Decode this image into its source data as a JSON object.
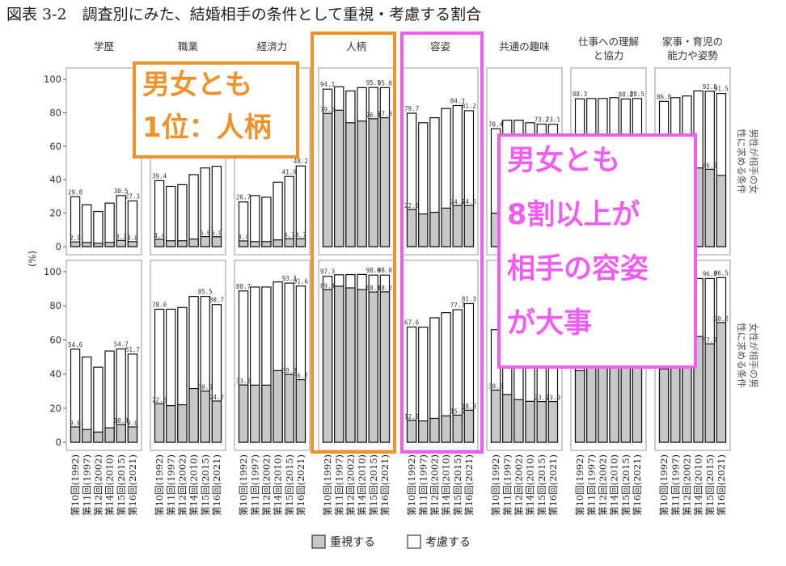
{
  "figure": {
    "title": "図表 3-2　調査別にみた、結婚相手の条件として重視・考慮する割合",
    "y_axis_unit": "(%)",
    "row_labels": [
      "男性が相手の女性に求める条件",
      "女性が相手の男性に求める条件"
    ],
    "legend": [
      "重視する",
      "考慮する"
    ],
    "callouts": [
      {
        "lines": [
          "男女とも",
          "1位：人柄"
        ],
        "color": "#f0922b"
      },
      {
        "lines": [
          "男女とも",
          "8割以上が",
          "相手の容姿",
          "が大事"
        ],
        "color": "#ef5ef0"
      }
    ]
  },
  "chart_data": {
    "type": "bar",
    "stacked_overlay": true,
    "yticks": [
      0,
      20,
      40,
      60,
      80,
      100
    ],
    "ylim": [
      0,
      100
    ],
    "categories": [
      "第10回(1992)",
      "第11回(1997)",
      "第12回(2002)",
      "第14回(2010)",
      "第15回(2015)",
      "第16回(2021)"
    ],
    "facets": [
      "学歴",
      "職業",
      "経済力",
      "人柄",
      "容姿",
      "共通の趣味",
      "仕事への理解と協力",
      "家事・育児の能力や姿勢"
    ],
    "series": [
      {
        "name": "重視する",
        "fill": "#c8c8c8"
      },
      {
        "name": "考慮する",
        "fill": "#ffffff"
      }
    ],
    "rows": [
      {
        "label": "男性が相手の女性に求める条件",
        "panels": [
          {
            "facet": "学歴",
            "total": [
              29.8,
              25,
              21,
              26,
              30.5,
              27.3
            ],
            "emph": [
              2.8,
              2.5,
              2,
              2.5,
              3.7,
              3.0
            ],
            "labels_total": [
              "29.8",
              "",
              "",
              "",
              "30.5",
              "27.3"
            ],
            "labels_emph": [
              "2.8",
              "",
              "",
              "",
              "3.7",
              "3.0"
            ]
          },
          {
            "facet": "職業",
            "total": [
              39.4,
              36,
              37,
              43,
              47,
              48
            ],
            "emph": [
              4.4,
              3.5,
              3.5,
              4.5,
              6.0,
              5.9
            ],
            "labels_total": [
              "39.4",
              "",
              "",
              "",
              "",
              ""
            ],
            "labels_emph": [
              "4.4",
              "",
              "",
              "",
              "6.0",
              "5.9"
            ]
          },
          {
            "facet": "経済力",
            "total": [
              26.7,
              30.5,
              29.5,
              38.5,
              41.9,
              48.2
            ],
            "emph": [
              3.4,
              3,
              3,
              4,
              4.7,
              4.7
            ],
            "labels_total": [
              "26.7",
              "",
              "",
              "",
              "41.9",
              "48.2"
            ],
            "labels_emph": [
              "3.4",
              "",
              "",
              "",
              "4.7",
              "4.7"
            ]
          },
          {
            "facet": "人柄",
            "total": [
              94.1,
              95.5,
              93,
              95,
              95.1,
              95.0
            ],
            "emph": [
              79.6,
              81.5,
              74,
              75,
              76.4,
              77.0
            ],
            "labels_total": [
              "94.1",
              "",
              "",
              "",
              "95.1",
              "95.0"
            ],
            "labels_emph": [
              "79.6",
              "",
              "",
              "",
              "76.4",
              "77.0"
            ]
          },
          {
            "facet": "容姿",
            "total": [
              79.7,
              74,
              77,
              82.5,
              84.3,
              81.2
            ],
            "emph": [
              22.2,
              19.5,
              20.5,
              23,
              24.5,
              24.6
            ],
            "labels_total": [
              "79.7",
              "",
              "",
              "",
              "84.3",
              "81.2"
            ],
            "labels_emph": [
              "22.2",
              "",
              "",
              "",
              "24.5",
              "24.6"
            ]
          },
          {
            "facet": "共通の趣味",
            "total": [
              70.4,
              75.5,
              75.5,
              74,
              73.2,
              73.1
            ],
            "emph": [
              20,
              22,
              22,
              21,
              20,
              20
            ],
            "labels_total": [
              "70.4",
              "",
              "",
              "",
              "73.2",
              "73.1"
            ],
            "labels_emph": [
              "",
              "",
              "",
              "",
              "",
              ""
            ]
          },
          {
            "facet": "仕事への理解と協力",
            "total": [
              88.3,
              88.5,
              88.5,
              89,
              88.2,
              88.5
            ],
            "emph": [
              35,
              37,
              38,
              40,
              41,
              42
            ],
            "labels_total": [
              "88.3",
              "",
              "",
              "",
              "88.2",
              "88.5"
            ],
            "labels_emph": [
              "",
              "",
              "",
              "",
              "",
              ""
            ]
          },
          {
            "facet": "家事・育児の能力や姿勢",
            "total": [
              86.8,
              89,
              90,
              93,
              92.8,
              91.5
            ],
            "emph": [
              30,
              34,
              38,
              47,
              46.2,
              42.5
            ],
            "labels_total": [
              "86.8",
              "",
              "",
              "",
              "92.8",
              "91.5"
            ],
            "labels_emph": [
              "",
              "",
              "",
              "",
              "46.2",
              ""
            ]
          }
        ]
      },
      {
        "label": "女性が相手の男性に求める条件",
        "panels": [
          {
            "facet": "学歴",
            "total": [
              54.6,
              50,
              44,
              53.5,
              54.7,
              51.7
            ],
            "emph": [
              9.0,
              7.5,
              6,
              8.5,
              10.4,
              9.0
            ],
            "labels_total": [
              "54.6",
              "",
              "",
              "",
              "54.7",
              "51.7"
            ],
            "labels_emph": [
              "9.0",
              "",
              "",
              "",
              "10.4",
              "9.0"
            ]
          },
          {
            "facet": "職業",
            "total": [
              78.0,
              78,
              79,
              85.5,
              85.5,
              80.7
            ],
            "emph": [
              22.6,
              21.5,
              22,
              31.5,
              30.0,
              24.2
            ],
            "labels_total": [
              "78.0",
              "",
              "",
              "",
              "85.5",
              "80.7"
            ],
            "labels_emph": [
              "22.6",
              "",
              "",
              "",
              "30.0",
              "24.2"
            ]
          },
          {
            "facet": "経済力",
            "total": [
              88.7,
              91,
              91,
              94,
              93.3,
              91.6
            ],
            "emph": [
              33.6,
              33.5,
              33.5,
              42,
              39.8,
              36.7
            ],
            "labels_total": [
              "88.7",
              "",
              "",
              "",
              "93.3",
              "91.6"
            ],
            "labels_emph": [
              "33.6",
              "",
              "",
              "",
              "39.8",
              "36.7"
            ]
          },
          {
            "facet": "人柄",
            "total": [
              97.3,
              98.2,
              98.3,
              98.4,
              98.0,
              98.0
            ],
            "emph": [
              89.4,
              91.5,
              90.5,
              89.5,
              88.1,
              88.2
            ],
            "labels_total": [
              "97.3",
              "",
              "",
              "",
              "98.0",
              "98.0"
            ],
            "labels_emph": [
              "89.4",
              "",
              "",
              "",
              "88.1",
              "88.2"
            ]
          },
          {
            "facet": "容姿",
            "total": [
              67.6,
              67.5,
              73,
              76,
              77.7,
              81.3
            ],
            "emph": [
              12.9,
              12.5,
              14,
              15.5,
              15.9,
              18.8
            ],
            "labels_total": [
              "67.6",
              "",
              "",
              "",
              "77.7",
              "81.3"
            ],
            "labels_emph": [
              "12.9",
              "",
              "",
              "",
              "15.9",
              "18.8"
            ]
          },
          {
            "facet": "共通の趣味",
            "total": [
              66,
              67,
              68,
              70,
              72,
              73
            ],
            "emph": [
              30.6,
              28,
              25,
              24,
              23.9,
              23.9
            ],
            "labels_total": [
              "",
              "",
              "",
              "",
              "",
              ""
            ],
            "labels_emph": [
              "30.6",
              "",
              "",
              "",
              "23.9",
              "23.9"
            ]
          },
          {
            "facet": "仕事への理解と協力",
            "total": [
              94,
              95,
              96,
              97,
              96.5,
              96
            ],
            "emph": [
              42,
              45,
              48,
              50,
              51,
              53
            ],
            "labels_total": [
              "",
              "",
              "",
              "",
              "",
              ""
            ],
            "labels_emph": [
              "",
              "",
              "",
              "",
              "",
              ""
            ]
          },
          {
            "facet": "家事・育児の能力や姿勢",
            "total": [
              89,
              92,
              94.5,
              96,
              96.0,
              96.5
            ],
            "emph": [
              43,
              46,
              50,
              62,
              57.7,
              70.2
            ],
            "labels_total": [
              "",
              "",
              "",
              "",
              "96.0",
              "96.5"
            ],
            "labels_emph": [
              "",
              "",
              "",
              "",
              "57.7",
              "70.2"
            ]
          }
        ]
      }
    ]
  }
}
